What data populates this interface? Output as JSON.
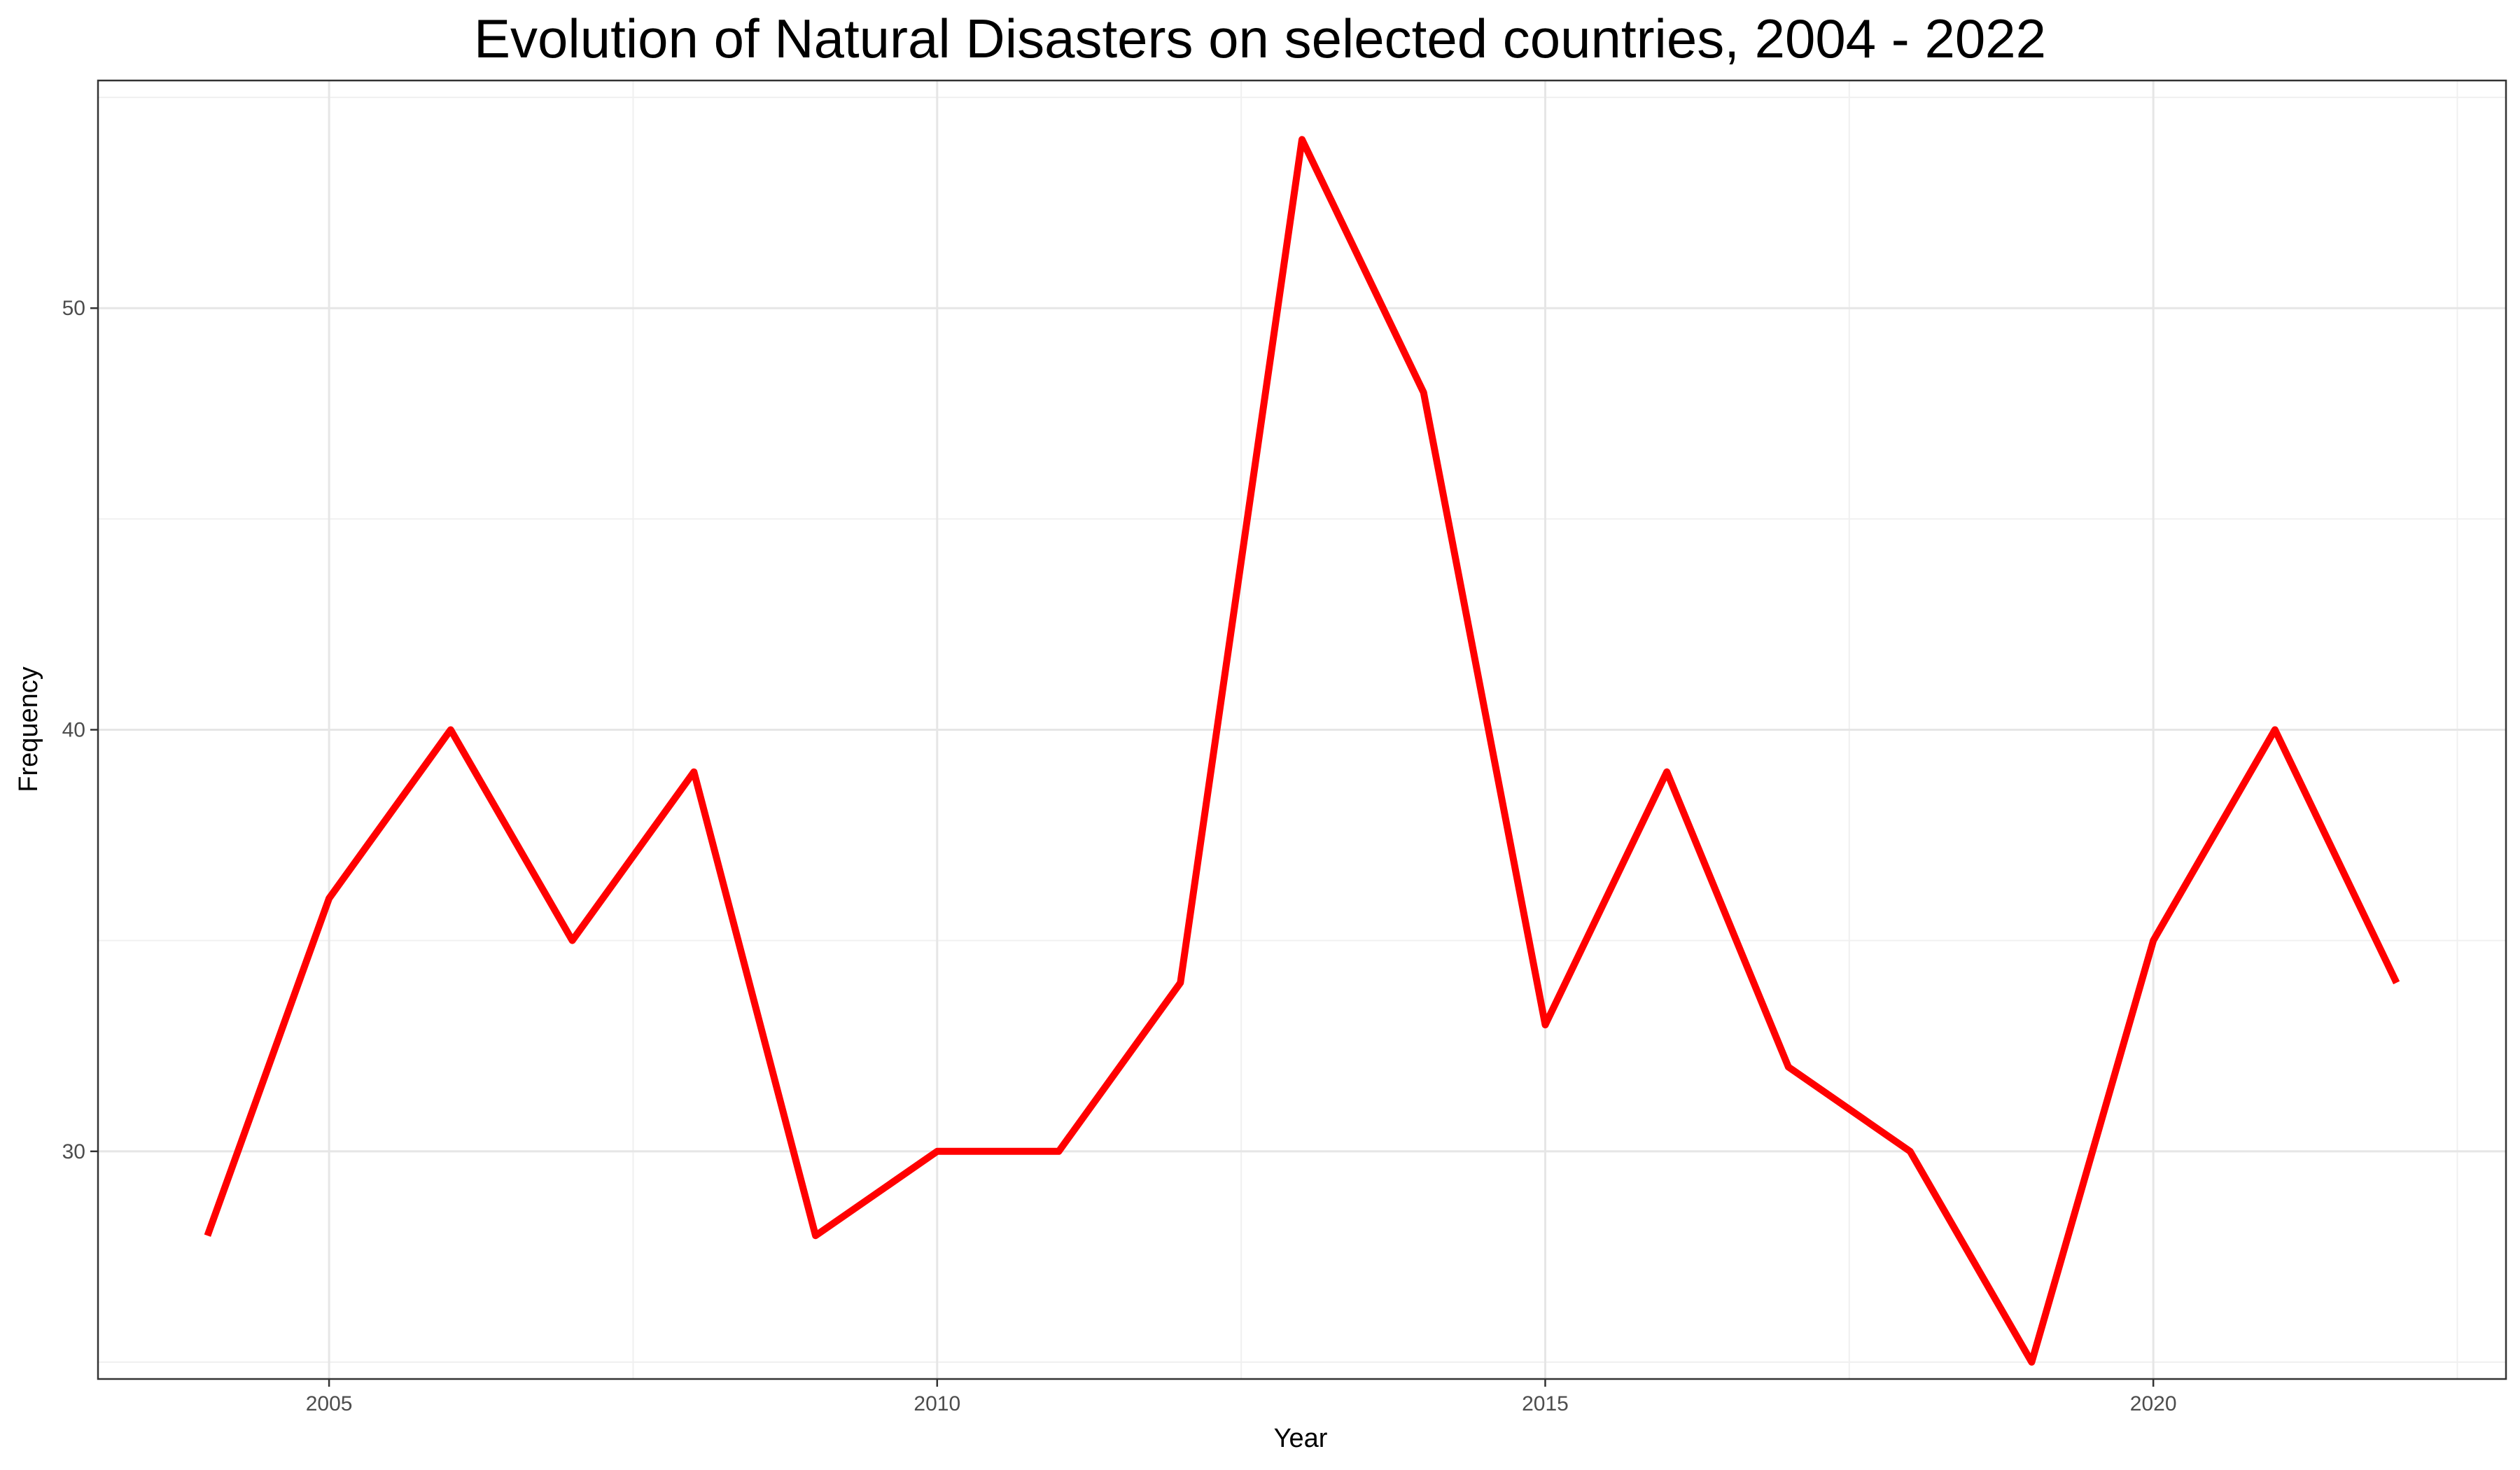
{
  "chart_data": {
    "type": "line",
    "title": "Evolution of Natural Disasters on selected countries, 2004 - 2022",
    "xlabel": "Year",
    "ylabel": "Frequency",
    "x": [
      2004,
      2005,
      2006,
      2007,
      2008,
      2009,
      2010,
      2011,
      2012,
      2013,
      2014,
      2015,
      2016,
      2017,
      2018,
      2019,
      2020,
      2021,
      2022
    ],
    "series": [
      {
        "values": [
          28,
          36,
          40,
          35,
          39,
          28,
          30,
          30,
          34,
          54,
          48,
          33,
          39,
          32,
          30,
          25,
          35,
          40,
          34
        ]
      }
    ],
    "xlim": [
      2003.1,
      2022.9
    ],
    "ylim": [
      24.6,
      55.4
    ],
    "x_ticks": [
      "2005",
      "2010",
      "2015",
      "2020"
    ],
    "y_ticks": [
      "30",
      "40",
      "50"
    ],
    "grid": true,
    "line_color": "#ff0000",
    "theme": "black-and-white panel with light gray gridlines"
  }
}
